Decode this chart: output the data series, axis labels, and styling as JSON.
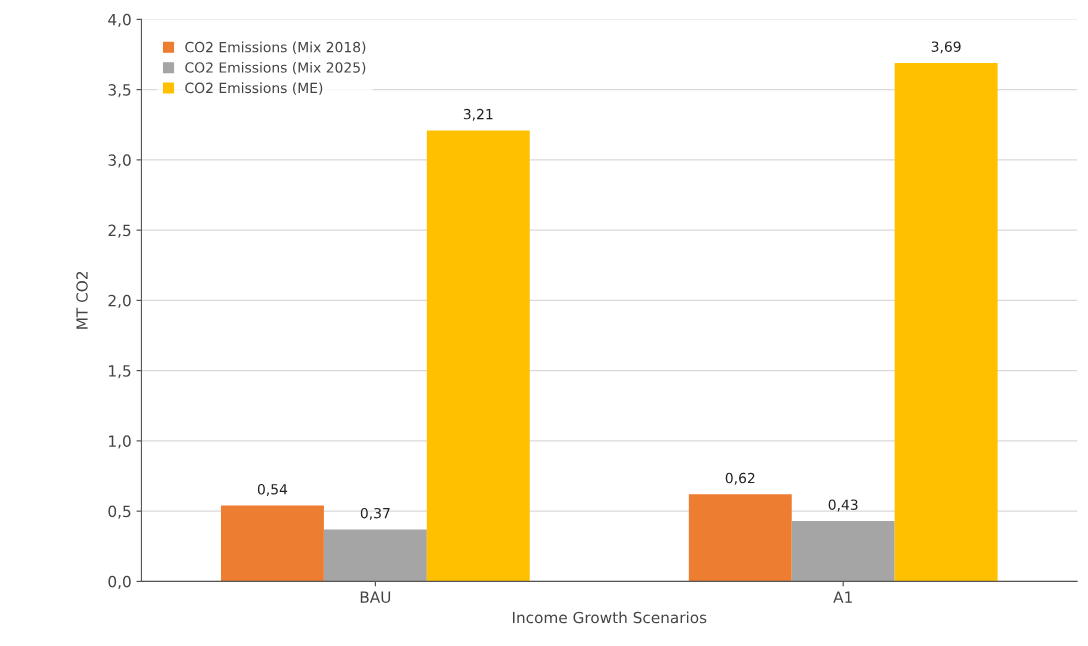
{
  "chart_data": {
    "type": "bar",
    "xlabel": "Income Growth Scenarios",
    "ylabel": "MT CO2",
    "categories": [
      "BAU",
      "A1"
    ],
    "series": [
      {
        "name": "CO2 Emissions (Mix 2018)",
        "color": "#ed7d31",
        "values": [
          0.54,
          0.62
        ],
        "value_labels": [
          "0,54",
          "0,62"
        ]
      },
      {
        "name": "CO2 Emissions (Mix 2025)",
        "color": "#a5a5a5",
        "values": [
          0.37,
          0.43
        ],
        "value_labels": [
          "0,37",
          "0,43"
        ]
      },
      {
        "name": "CO2 Emissions (ME)",
        "color": "#ffc000",
        "values": [
          3.21,
          3.69
        ],
        "value_labels": [
          "3,21",
          "3,69"
        ]
      }
    ],
    "ylim": [
      0,
      4
    ],
    "yticks": [
      {
        "value": 0,
        "label": "0,0"
      },
      {
        "value": 0.5,
        "label": "0,5"
      },
      {
        "value": 1,
        "label": "1,0"
      },
      {
        "value": 1.5,
        "label": "1,5"
      },
      {
        "value": 2,
        "label": "2,0"
      },
      {
        "value": 2.5,
        "label": "2,5"
      },
      {
        "value": 3,
        "label": "3,0"
      },
      {
        "value": 3.5,
        "label": "3,5"
      },
      {
        "value": 4,
        "label": "4,0"
      }
    ],
    "grid": "y",
    "legend": "top left"
  }
}
